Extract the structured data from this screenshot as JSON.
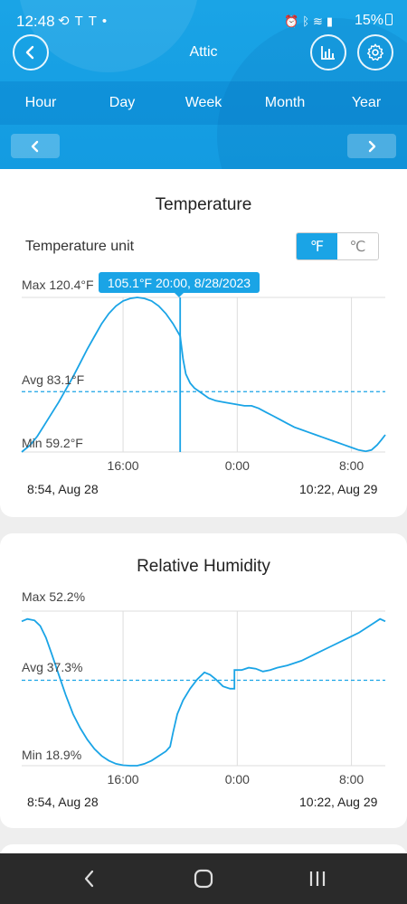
{
  "status_bar": {
    "time": "12:48",
    "left_icons": [
      "sync-icon",
      "tesla-icon",
      "tesla-icon",
      "dot-icon"
    ],
    "right_icons": [
      "alarm-icon",
      "bluetooth-icon",
      "wifi-icon",
      "signal-icon"
    ],
    "battery": "15%"
  },
  "app": {
    "title": "Attic",
    "back_icon": "chevron-left-icon",
    "chart_icon": "bar-chart-icon",
    "settings_icon": "gear-icon",
    "accent": "#1aa4e6"
  },
  "tabs": [
    "Hour",
    "Day",
    "Week",
    "Month",
    "Year"
  ],
  "pager": {
    "prev_icon": "chevron-left-icon",
    "next_icon": "chevron-right-icon"
  },
  "temperature": {
    "title": "Temperature",
    "unit_label": "Temperature unit",
    "unit_f": "℉",
    "unit_c": "℃",
    "max_label": "Max 120.4°F",
    "avg_label": "Avg 83.1°F",
    "min_label": "Min 59.2°F",
    "tooltip": "105.1°F 20:00, 8/28/2023",
    "range_start": "8:54, Aug 28",
    "range_end": "10:22, Aug 29"
  },
  "humidity": {
    "title": "Relative Humidity",
    "max_label": "Max 52.2%",
    "avg_label": "Avg 37.3%",
    "min_label": "Min 18.9%",
    "range_start": "8:54, Aug 28",
    "range_end": "10:22, Aug 29"
  },
  "nav": {
    "back": "back-icon",
    "home": "home-icon",
    "recents": "recents-icon"
  },
  "chart_data": [
    {
      "type": "line",
      "name_ref": "temperature",
      "x_ticks": [
        "16:00",
        "0:00",
        "8:00"
      ],
      "x_tick_hours": [
        16,
        24,
        32
      ],
      "x_range_hours": [
        8.9,
        34.37
      ],
      "y_range": [
        59.2,
        120.4
      ],
      "avg": 83.1,
      "cursor_hour": 20,
      "cursor_value": 105.1,
      "points": [
        [
          8.9,
          59.2
        ],
        [
          9.5,
          62
        ],
        [
          10,
          65.5
        ],
        [
          10.5,
          70
        ],
        [
          11,
          74.5
        ],
        [
          11.5,
          79
        ],
        [
          12,
          84
        ],
        [
          12.5,
          89
        ],
        [
          13,
          94.5
        ],
        [
          13.5,
          100
        ],
        [
          14,
          105
        ],
        [
          14.5,
          110
        ],
        [
          15,
          114
        ],
        [
          15.5,
          117
        ],
        [
          16,
          119
        ],
        [
          16.5,
          120
        ],
        [
          17,
          120.4
        ],
        [
          17.5,
          120
        ],
        [
          18,
          119
        ],
        [
          18.5,
          117
        ],
        [
          19,
          114
        ],
        [
          19.5,
          110
        ],
        [
          20,
          105.1
        ],
        [
          20.2,
          96
        ],
        [
          20.4,
          90
        ],
        [
          20.7,
          86.5
        ],
        [
          21,
          84.5
        ],
        [
          21.5,
          82.5
        ],
        [
          22,
          80.5
        ],
        [
          22.5,
          79.5
        ],
        [
          23,
          79
        ],
        [
          23.5,
          78.5
        ],
        [
          24,
          78
        ],
        [
          24.5,
          77.5
        ],
        [
          25,
          77.5
        ],
        [
          25.5,
          76.5
        ],
        [
          26,
          75
        ],
        [
          26.5,
          73.5
        ],
        [
          27,
          72
        ],
        [
          27.5,
          70.5
        ],
        [
          28,
          69
        ],
        [
          28.5,
          68
        ],
        [
          29,
          67
        ],
        [
          29.5,
          66
        ],
        [
          30,
          65
        ],
        [
          30.5,
          64
        ],
        [
          31,
          63
        ],
        [
          31.5,
          62
        ],
        [
          32,
          61
        ],
        [
          32.5,
          60
        ],
        [
          33,
          59.5
        ],
        [
          33.4,
          60
        ],
        [
          33.8,
          62
        ],
        [
          34.1,
          64
        ],
        [
          34.37,
          66
        ]
      ]
    },
    {
      "type": "line",
      "name_ref": "humidity",
      "x_ticks": [
        "16:00",
        "0:00",
        "8:00"
      ],
      "x_tick_hours": [
        16,
        24,
        32
      ],
      "x_range_hours": [
        8.9,
        34.37
      ],
      "y_range": [
        18.9,
        52.2
      ],
      "avg": 37.3,
      "points": [
        [
          8.9,
          50
        ],
        [
          9.3,
          50.5
        ],
        [
          9.8,
          50.2
        ],
        [
          10.2,
          49
        ],
        [
          10.6,
          46.5
        ],
        [
          11,
          43
        ],
        [
          11.5,
          38.5
        ],
        [
          12,
          34
        ],
        [
          12.5,
          30
        ],
        [
          13,
          27
        ],
        [
          13.5,
          24.5
        ],
        [
          14,
          22.5
        ],
        [
          14.5,
          21
        ],
        [
          15,
          20
        ],
        [
          15.5,
          19.3
        ],
        [
          16,
          19
        ],
        [
          16.5,
          18.9
        ],
        [
          17,
          18.9
        ],
        [
          17.5,
          19.3
        ],
        [
          18,
          20
        ],
        [
          18.5,
          21
        ],
        [
          19,
          22
        ],
        [
          19.3,
          23
        ],
        [
          19.5,
          26
        ],
        [
          19.8,
          30
        ],
        [
          20.2,
          33
        ],
        [
          20.7,
          35.5
        ],
        [
          21.2,
          37.5
        ],
        [
          21.7,
          39
        ],
        [
          22.1,
          38.5
        ],
        [
          22.5,
          37.5
        ],
        [
          23,
          36
        ],
        [
          23.5,
          35.5
        ],
        [
          23.8,
          35.5
        ],
        [
          23.8,
          39.5
        ],
        [
          24.3,
          39.5
        ],
        [
          24.8,
          40
        ],
        [
          25.3,
          39.8
        ],
        [
          25.8,
          39.2
        ],
        [
          26.3,
          39.5
        ],
        [
          26.8,
          40
        ],
        [
          27.5,
          40.5
        ],
        [
          28.5,
          41.5
        ],
        [
          29.5,
          43
        ],
        [
          30.5,
          44.5
        ],
        [
          31.5,
          46
        ],
        [
          32.5,
          47.5
        ],
        [
          33,
          48.5
        ],
        [
          33.5,
          49.5
        ],
        [
          34,
          50.5
        ],
        [
          34.37,
          50
        ]
      ]
    }
  ]
}
